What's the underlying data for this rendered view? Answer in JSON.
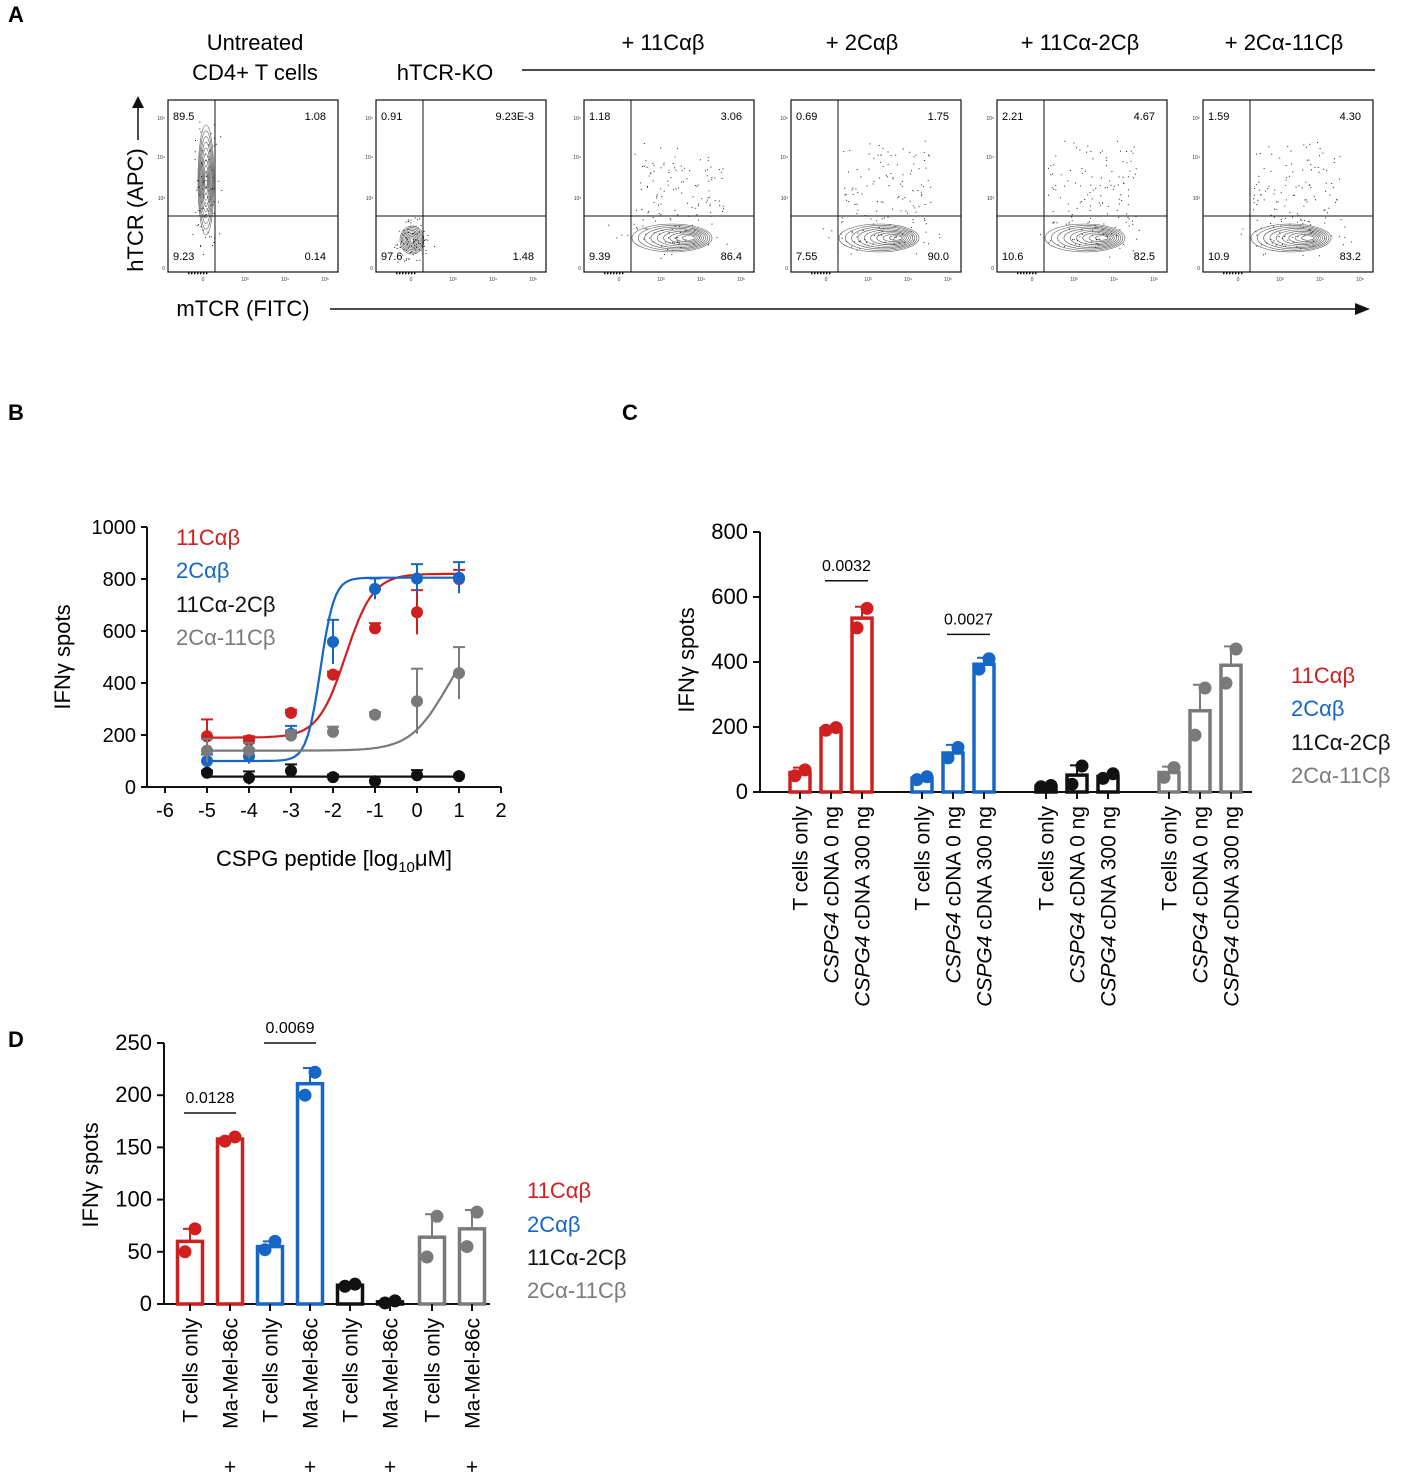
{
  "colors": {
    "red": "#d01f1f",
    "blue": "#1666c5",
    "black": "#111111",
    "gray": "#7a7a7a"
  },
  "panel_letters": [
    "A",
    "B",
    "C",
    "D"
  ],
  "panel_a": {
    "headers": [
      {
        "label": "Untreated",
        "label2": "CD4+ T cells"
      },
      {
        "label": "hTCR-KO"
      },
      {
        "label": "+ 11Cαβ"
      },
      {
        "label": "+ 2Cαβ"
      },
      {
        "label": "+ 11Cα-2Cβ"
      },
      {
        "label": "+ 2Cα-11Cβ"
      }
    ],
    "y_axis_label": "hTCR (APC)",
    "x_axis_label": "mTCR (FITC)",
    "plots": [
      {
        "ul": "89.5",
        "ur": "1.08",
        "ll": "9.23",
        "lr": "0.14",
        "population": "vertical"
      },
      {
        "ul": "0.91",
        "ur": "9.23E-3",
        "ll": "97.6",
        "lr": "1.48",
        "population": "negative"
      },
      {
        "ul": "1.18",
        "ur": "3.06",
        "ll": "9.39",
        "lr": "86.4",
        "population": "horizontal"
      },
      {
        "ul": "0.69",
        "ur": "1.75",
        "ll": "7.55",
        "lr": "90.0",
        "population": "horizontal"
      },
      {
        "ul": "2.21",
        "ur": "4.67",
        "ll": "10.6",
        "lr": "82.5",
        "population": "horizontal"
      },
      {
        "ul": "1.59",
        "ur": "4.30",
        "ll": "10.9",
        "lr": "83.2",
        "population": "horizontal"
      }
    ],
    "tick_labels": [
      "10⁵",
      "10⁴",
      "10³",
      "0"
    ]
  },
  "chart_data": [
    {
      "panel": "B",
      "type": "line",
      "xlabel": "CSPG peptide [log",
      "xlabel_sub": "10",
      "xlabel_end": "μM]",
      "ylabel": "IFNγ spots",
      "xlim": [
        -6,
        2
      ],
      "ylim": [
        0,
        1000
      ],
      "xticks": [
        -6,
        -5,
        -4,
        -3,
        -2,
        -1,
        0,
        1,
        2
      ],
      "yticks": [
        0,
        200,
        400,
        600,
        800,
        1000
      ],
      "x": [
        -5,
        -4,
        -3,
        -2,
        -1,
        0,
        1
      ],
      "series": [
        {
          "name": "11Cαβ",
          "color": "red",
          "values": [
            195,
            180,
            285,
            432,
            610,
            672,
            800
          ],
          "errors": [
            65,
            15,
            12,
            12,
            20,
            85,
            35
          ],
          "fit": {
            "bottom": 190,
            "top": 820,
            "ec50": -1.7,
            "hill": 0.6
          }
        },
        {
          "name": "2Cαβ",
          "color": "blue",
          "values": [
            100,
            118,
            205,
            558,
            762,
            802,
            805
          ],
          "errors": [
            25,
            28,
            30,
            85,
            40,
            55,
            60
          ],
          "fit": {
            "bottom": 100,
            "top": 805,
            "ec50": -2.3,
            "hill": 1.2
          }
        },
        {
          "name": "11Cα-2Cβ",
          "color": "black",
          "values": [
            55,
            35,
            62,
            38,
            22,
            45,
            42
          ],
          "errors": [
            8,
            25,
            25,
            10,
            5,
            20,
            5
          ],
          "fit": {
            "flat": 40
          }
        },
        {
          "name": "2Cα-11Cβ",
          "color": "gray",
          "values": [
            140,
            140,
            198,
            212,
            278,
            330,
            438
          ],
          "errors": [
            45,
            30,
            20,
            20,
            10,
            125,
            100
          ],
          "fit": {
            "bottom": 140,
            "top": 620,
            "ec50": 0.7,
            "hill": 0.45
          }
        }
      ]
    },
    {
      "panel": "C",
      "type": "bar",
      "ylabel": "IFNγ spots",
      "ylim": [
        0,
        800
      ],
      "yticks": [
        0,
        200,
        400,
        600,
        800
      ],
      "categories": [
        "T cells only",
        "CSPG4 cDNA 0 ng",
        "CSPG4 cDNA 300 ng"
      ],
      "category_italic": "CSPG4",
      "series": [
        {
          "name": "11Cαβ",
          "color": "red",
          "values": [
            60,
            195,
            535
          ],
          "errors": [
            15,
            5,
            35
          ],
          "points": [
            [
              50,
              68
            ],
            [
              190,
              198
            ],
            [
              505,
              565
            ]
          ]
        },
        {
          "name": "2Cαβ",
          "color": "blue",
          "values": [
            42,
            120,
            393
          ],
          "errors": [
            8,
            25,
            20
          ],
          "points": [
            [
              38,
              47
            ],
            [
              105,
              137
            ],
            [
              378,
              410
            ]
          ]
        },
        {
          "name": "11Cα-2Cβ",
          "color": "black",
          "values": [
            18,
            52,
            48
          ],
          "errors": [
            3,
            30,
            8
          ],
          "points": [
            [
              16,
              20
            ],
            [
              24,
              80
            ],
            [
              42,
              56
            ]
          ]
        },
        {
          "name": "2Cα-11Cβ",
          "color": "gray",
          "values": [
            60,
            250,
            390
          ],
          "errors": [
            18,
            80,
            58
          ],
          "points": [
            [
              45,
              75
            ],
            [
              175,
              320
            ],
            [
              335,
              440
            ]
          ]
        }
      ],
      "annotations": [
        {
          "label": "0.0032",
          "series": 0,
          "from": 1,
          "to": 2,
          "y": 650
        },
        {
          "label": "0.0027",
          "series": 1,
          "from": 1,
          "to": 2,
          "y": 485
        }
      ]
    },
    {
      "panel": "D",
      "type": "bar",
      "ylabel": "IFNγ spots",
      "ylim": [
        0,
        250
      ],
      "yticks": [
        0,
        50,
        100,
        150,
        200,
        250
      ],
      "categories": [
        "T cells only",
        "Ma-Mel-86c"
      ],
      "category_prefix": [
        "",
        "+"
      ],
      "series": [
        {
          "name": "11Cαβ",
          "color": "red",
          "values": [
            60,
            158
          ],
          "errors": [
            12,
            2
          ],
          "points": [
            [
              50,
              72
            ],
            [
              156,
              160
            ]
          ]
        },
        {
          "name": "2Cαβ",
          "color": "blue",
          "values": [
            55,
            211
          ],
          "errors": [
            5,
            15
          ],
          "points": [
            [
              52,
              60
            ],
            [
              200,
              222
            ]
          ]
        },
        {
          "name": "11Cα-2Cβ",
          "color": "black",
          "values": [
            18,
            2
          ],
          "errors": [
            1,
            1
          ],
          "points": [
            [
              17,
              19
            ],
            [
              1,
              3
            ]
          ]
        },
        {
          "name": "2Cα-11Cβ",
          "color": "gray",
          "values": [
            64,
            72
          ],
          "errors": [
            22,
            18
          ],
          "points": [
            [
              45,
              84
            ],
            [
              55,
              88
            ]
          ]
        }
      ],
      "annotations": [
        {
          "label": "0.0128",
          "series": 0,
          "from": 0,
          "to": 1,
          "y": 183
        },
        {
          "label": "0.0069",
          "series": 1,
          "from": 0,
          "to": 1,
          "y": 250
        }
      ]
    }
  ]
}
